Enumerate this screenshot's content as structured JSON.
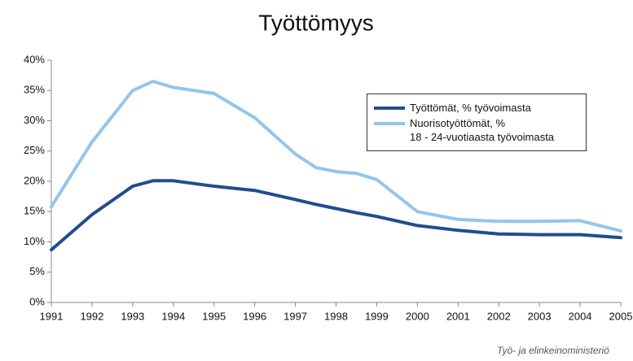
{
  "chart_data": {
    "type": "line",
    "title": "Työttömyys",
    "source": "Työ- ja elinkeinoministeriö",
    "x": [
      1991,
      1992,
      1993,
      1993.5,
      1994,
      1995,
      1996,
      1997,
      1997.5,
      1998,
      1998.5,
      1999,
      2000,
      2001,
      2002,
      2003,
      2004,
      2005
    ],
    "series": [
      {
        "name": "Työttömät, % työvoimasta",
        "color": "#1f4e8c",
        "values": [
          8.7,
          14.5,
          19.2,
          20.1,
          20.1,
          19.2,
          18.5,
          17.0,
          16.2,
          15.5,
          14.8,
          14.2,
          12.7,
          11.9,
          11.3,
          11.2,
          11.2,
          10.7
        ]
      },
      {
        "name": "Nuorisotyöttömät, %\n18 - 24-vuotiaasta työvoimasta",
        "color": "#93c6ea",
        "values": [
          15.8,
          26.5,
          35.0,
          36.5,
          35.5,
          34.5,
          30.5,
          24.5,
          22.3,
          21.6,
          21.3,
          20.3,
          15.0,
          13.7,
          13.4,
          13.4,
          13.5,
          11.8
        ]
      }
    ],
    "xlim": [
      1991,
      2005
    ],
    "xticks": [
      1991,
      1992,
      1993,
      1994,
      1995,
      1996,
      1997,
      1998,
      1999,
      2000,
      2001,
      2002,
      2003,
      2004,
      2005
    ],
    "ylim": [
      0,
      40
    ],
    "yticks": [
      {
        "value": 0,
        "label": "0%"
      },
      {
        "value": 5,
        "label": "5%"
      },
      {
        "value": 10,
        "label": "10%"
      },
      {
        "value": 15,
        "label": "15%"
      },
      {
        "value": 20,
        "label": "20%"
      },
      {
        "value": 25,
        "label": "25%"
      },
      {
        "value": 30,
        "label": "30%"
      },
      {
        "value": 35,
        "label": "35%"
      },
      {
        "value": 40,
        "label": "40%"
      }
    ],
    "grid": false,
    "legend": "upper right"
  }
}
